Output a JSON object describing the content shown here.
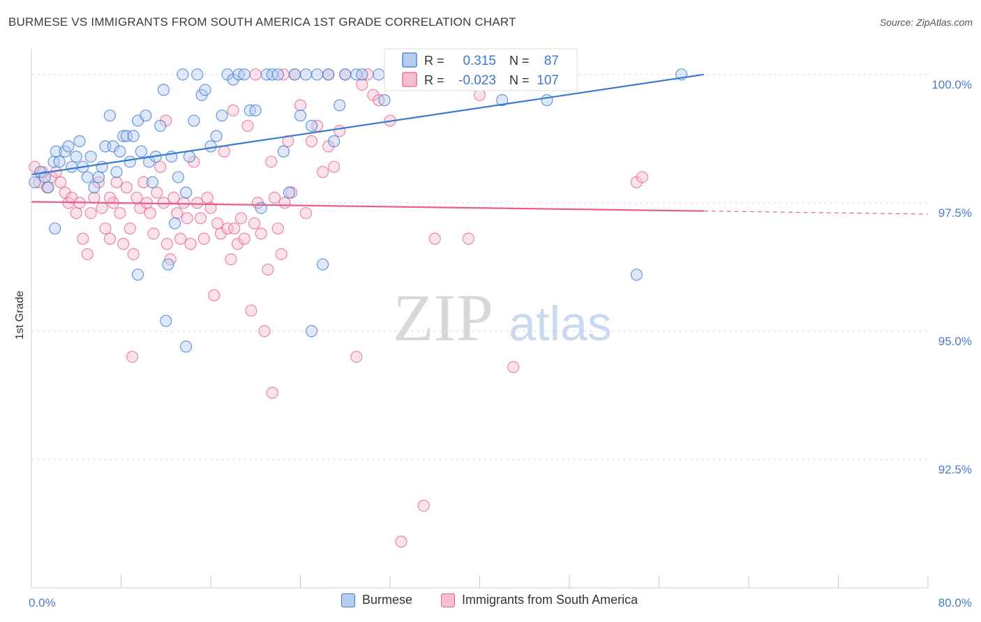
{
  "header": {
    "title": "BURMESE VS IMMIGRANTS FROM SOUTH AMERICA 1ST GRADE CORRELATION CHART",
    "source": "Source: ZipAtlas.com"
  },
  "colors": {
    "blue": "#3a78d4",
    "blue_fill": "#b6cdf0",
    "pink": "#e5608e",
    "pink_fill": "#f5bfd1",
    "grid": "#d9d9d9",
    "tick_label": "#4a7cc8"
  },
  "chart_data": {
    "type": "scatter",
    "title": "BURMESE VS IMMIGRANTS FROM SOUTH AMERICA 1ST GRADE CORRELATION CHART",
    "ylabel": "1st Grade",
    "xlabel": "",
    "xlim": [
      0,
      80
    ],
    "ylim": [
      90.0,
      100.5
    ],
    "x_tick_labels": [
      "0.0%",
      "80.0%"
    ],
    "y_ticks": [
      92.5,
      95.0,
      97.5,
      100.0
    ],
    "y_tick_labels": [
      "92.5%",
      "95.0%",
      "97.5%",
      "100.0%"
    ],
    "watermark": {
      "zip": "ZIP",
      "atlas": "atlas"
    },
    "legend": {
      "r_label": "R =",
      "n_label": "N =",
      "entries": [
        {
          "r": "0.315",
          "n": "87"
        },
        {
          "r": "-0.023",
          "n": "107"
        }
      ]
    },
    "series": [
      {
        "name": "Burmese",
        "r": 0.315,
        "n": 87,
        "trend": {
          "x0": 0,
          "y0": 98.05,
          "x1": 60,
          "y1": 100.0,
          "dashed_to": null
        },
        "points": [
          [
            0.3,
            97.9
          ],
          [
            0.8,
            98.1
          ],
          [
            1.2,
            98.0
          ],
          [
            1.5,
            97.8
          ],
          [
            2.0,
            98.3
          ],
          [
            2.2,
            98.5
          ],
          [
            2.5,
            98.3
          ],
          [
            3.0,
            98.5
          ],
          [
            3.3,
            98.6
          ],
          [
            3.6,
            98.2
          ],
          [
            4.0,
            98.4
          ],
          [
            4.3,
            98.7
          ],
          [
            4.6,
            98.2
          ],
          [
            5.0,
            98.0
          ],
          [
            5.3,
            98.4
          ],
          [
            5.6,
            97.8
          ],
          [
            6.0,
            98.0
          ],
          [
            6.3,
            98.2
          ],
          [
            6.6,
            98.6
          ],
          [
            7.0,
            99.2
          ],
          [
            7.3,
            98.6
          ],
          [
            7.6,
            98.1
          ],
          [
            7.9,
            98.5
          ],
          [
            8.2,
            98.8
          ],
          [
            8.5,
            98.8
          ],
          [
            8.8,
            98.3
          ],
          [
            9.1,
            98.8
          ],
          [
            9.5,
            99.1
          ],
          [
            9.8,
            98.5
          ],
          [
            10.2,
            99.2
          ],
          [
            10.5,
            98.3
          ],
          [
            10.8,
            97.9
          ],
          [
            11.1,
            98.4
          ],
          [
            11.5,
            99.0
          ],
          [
            11.8,
            99.7
          ],
          [
            12.2,
            96.3
          ],
          [
            12.5,
            98.4
          ],
          [
            12.8,
            97.1
          ],
          [
            13.1,
            98.0
          ],
          [
            13.5,
            100.0
          ],
          [
            13.8,
            97.7
          ],
          [
            14.1,
            98.4
          ],
          [
            14.5,
            99.1
          ],
          [
            14.8,
            100.0
          ],
          [
            15.2,
            99.6
          ],
          [
            15.5,
            99.7
          ],
          [
            16.0,
            98.6
          ],
          [
            16.5,
            98.8
          ],
          [
            17.0,
            99.2
          ],
          [
            17.5,
            100.0
          ],
          [
            18.0,
            99.9
          ],
          [
            18.5,
            100.0
          ],
          [
            19.0,
            100.0
          ],
          [
            19.5,
            99.3
          ],
          [
            20.0,
            99.3
          ],
          [
            20.5,
            97.4
          ],
          [
            21.0,
            100.0
          ],
          [
            21.5,
            100.0
          ],
          [
            22.0,
            100.0
          ],
          [
            22.5,
            98.5
          ],
          [
            23.0,
            97.7
          ],
          [
            23.5,
            100.0
          ],
          [
            24.0,
            99.2
          ],
          [
            24.5,
            100.0
          ],
          [
            25.0,
            99.0
          ],
          [
            25.5,
            100.0
          ],
          [
            26.0,
            96.3
          ],
          [
            26.5,
            100.0
          ],
          [
            27.0,
            98.7
          ],
          [
            27.5,
            99.4
          ],
          [
            28.0,
            100.0
          ],
          [
            29.0,
            100.0
          ],
          [
            29.5,
            100.0
          ],
          [
            31.0,
            100.0
          ],
          [
            31.5,
            99.5
          ],
          [
            33.0,
            100.0
          ],
          [
            34.0,
            100.0
          ],
          [
            35.0,
            100.0
          ],
          [
            36.5,
            100.0
          ],
          [
            38.0,
            100.0
          ],
          [
            40.0,
            99.8
          ],
          [
            42.0,
            99.5
          ],
          [
            46.0,
            99.5
          ],
          [
            54.0,
            96.1
          ],
          [
            58.0,
            100.0
          ],
          [
            12.0,
            95.2
          ],
          [
            13.8,
            94.7
          ],
          [
            25.0,
            95.0
          ],
          [
            2.1,
            97.0
          ],
          [
            9.5,
            96.1
          ]
        ]
      },
      {
        "name": "Immigrants from South America",
        "r": -0.023,
        "n": 107,
        "trend": {
          "x0": 0,
          "y0": 97.52,
          "x1": 60,
          "y1": 97.34,
          "dashed_to": 80
        },
        "points": [
          [
            0.3,
            98.2
          ],
          [
            0.7,
            97.9
          ],
          [
            1.0,
            98.1
          ],
          [
            1.4,
            97.8
          ],
          [
            1.8,
            98.0
          ],
          [
            2.2,
            98.1
          ],
          [
            2.6,
            97.9
          ],
          [
            3.0,
            97.7
          ],
          [
            3.3,
            97.5
          ],
          [
            3.6,
            97.6
          ],
          [
            4.0,
            97.3
          ],
          [
            4.3,
            97.5
          ],
          [
            4.6,
            96.8
          ],
          [
            5.0,
            96.5
          ],
          [
            5.3,
            97.3
          ],
          [
            5.6,
            97.6
          ],
          [
            6.0,
            97.9
          ],
          [
            6.3,
            97.4
          ],
          [
            6.6,
            97.0
          ],
          [
            7.0,
            96.8
          ],
          [
            7.3,
            97.5
          ],
          [
            7.6,
            97.9
          ],
          [
            7.9,
            97.3
          ],
          [
            8.2,
            96.7
          ],
          [
            8.5,
            97.8
          ],
          [
            8.8,
            97.0
          ],
          [
            9.1,
            96.5
          ],
          [
            9.4,
            97.6
          ],
          [
            9.7,
            97.4
          ],
          [
            10.0,
            97.9
          ],
          [
            10.3,
            97.5
          ],
          [
            10.6,
            97.3
          ],
          [
            10.9,
            96.9
          ],
          [
            11.2,
            97.7
          ],
          [
            11.5,
            98.2
          ],
          [
            11.8,
            97.5
          ],
          [
            12.1,
            96.7
          ],
          [
            12.4,
            96.4
          ],
          [
            12.7,
            97.6
          ],
          [
            13.0,
            97.3
          ],
          [
            13.3,
            96.8
          ],
          [
            13.6,
            97.5
          ],
          [
            13.9,
            97.2
          ],
          [
            14.2,
            96.7
          ],
          [
            14.5,
            98.3
          ],
          [
            14.8,
            97.5
          ],
          [
            15.1,
            97.2
          ],
          [
            15.4,
            96.8
          ],
          [
            15.7,
            97.6
          ],
          [
            16.0,
            97.4
          ],
          [
            16.3,
            95.7
          ],
          [
            16.6,
            97.1
          ],
          [
            16.9,
            96.9
          ],
          [
            17.2,
            98.5
          ],
          [
            17.5,
            97.0
          ],
          [
            17.8,
            96.4
          ],
          [
            18.1,
            97.0
          ],
          [
            18.4,
            96.7
          ],
          [
            18.7,
            97.2
          ],
          [
            19.0,
            96.8
          ],
          [
            19.3,
            99.0
          ],
          [
            19.6,
            95.4
          ],
          [
            19.9,
            97.1
          ],
          [
            20.2,
            97.5
          ],
          [
            20.5,
            96.9
          ],
          [
            20.8,
            95.0
          ],
          [
            21.1,
            96.2
          ],
          [
            21.4,
            98.3
          ],
          [
            21.7,
            97.6
          ],
          [
            22.0,
            97.0
          ],
          [
            22.3,
            96.5
          ],
          [
            22.6,
            97.5
          ],
          [
            22.9,
            98.7
          ],
          [
            23.2,
            97.7
          ],
          [
            23.5,
            100.0
          ],
          [
            24.0,
            99.4
          ],
          [
            24.5,
            97.3
          ],
          [
            25.0,
            98.7
          ],
          [
            25.5,
            99.0
          ],
          [
            26.0,
            98.1
          ],
          [
            26.5,
            98.6
          ],
          [
            27.0,
            98.2
          ],
          [
            27.5,
            98.9
          ],
          [
            28.0,
            100.0
          ],
          [
            29.0,
            94.5
          ],
          [
            29.5,
            99.8
          ],
          [
            30.0,
            100.0
          ],
          [
            30.5,
            99.6
          ],
          [
            31.0,
            99.5
          ],
          [
            32.0,
            99.1
          ],
          [
            33.0,
            90.9
          ],
          [
            35.0,
            91.6
          ],
          [
            36.0,
            96.8
          ],
          [
            39.0,
            96.8
          ],
          [
            40.0,
            99.6
          ],
          [
            43.0,
            94.3
          ],
          [
            54.0,
            97.9
          ],
          [
            54.5,
            98.0
          ],
          [
            9.0,
            94.5
          ],
          [
            21.5,
            93.8
          ],
          [
            12.0,
            99.1
          ],
          [
            20.0,
            100.0
          ],
          [
            22.5,
            100.0
          ],
          [
            26.5,
            100.0
          ],
          [
            18.0,
            99.3
          ],
          [
            7.0,
            97.6
          ]
        ]
      }
    ]
  },
  "bottom_legend": {
    "items": [
      "Burmese",
      "Immigrants from South America"
    ]
  }
}
